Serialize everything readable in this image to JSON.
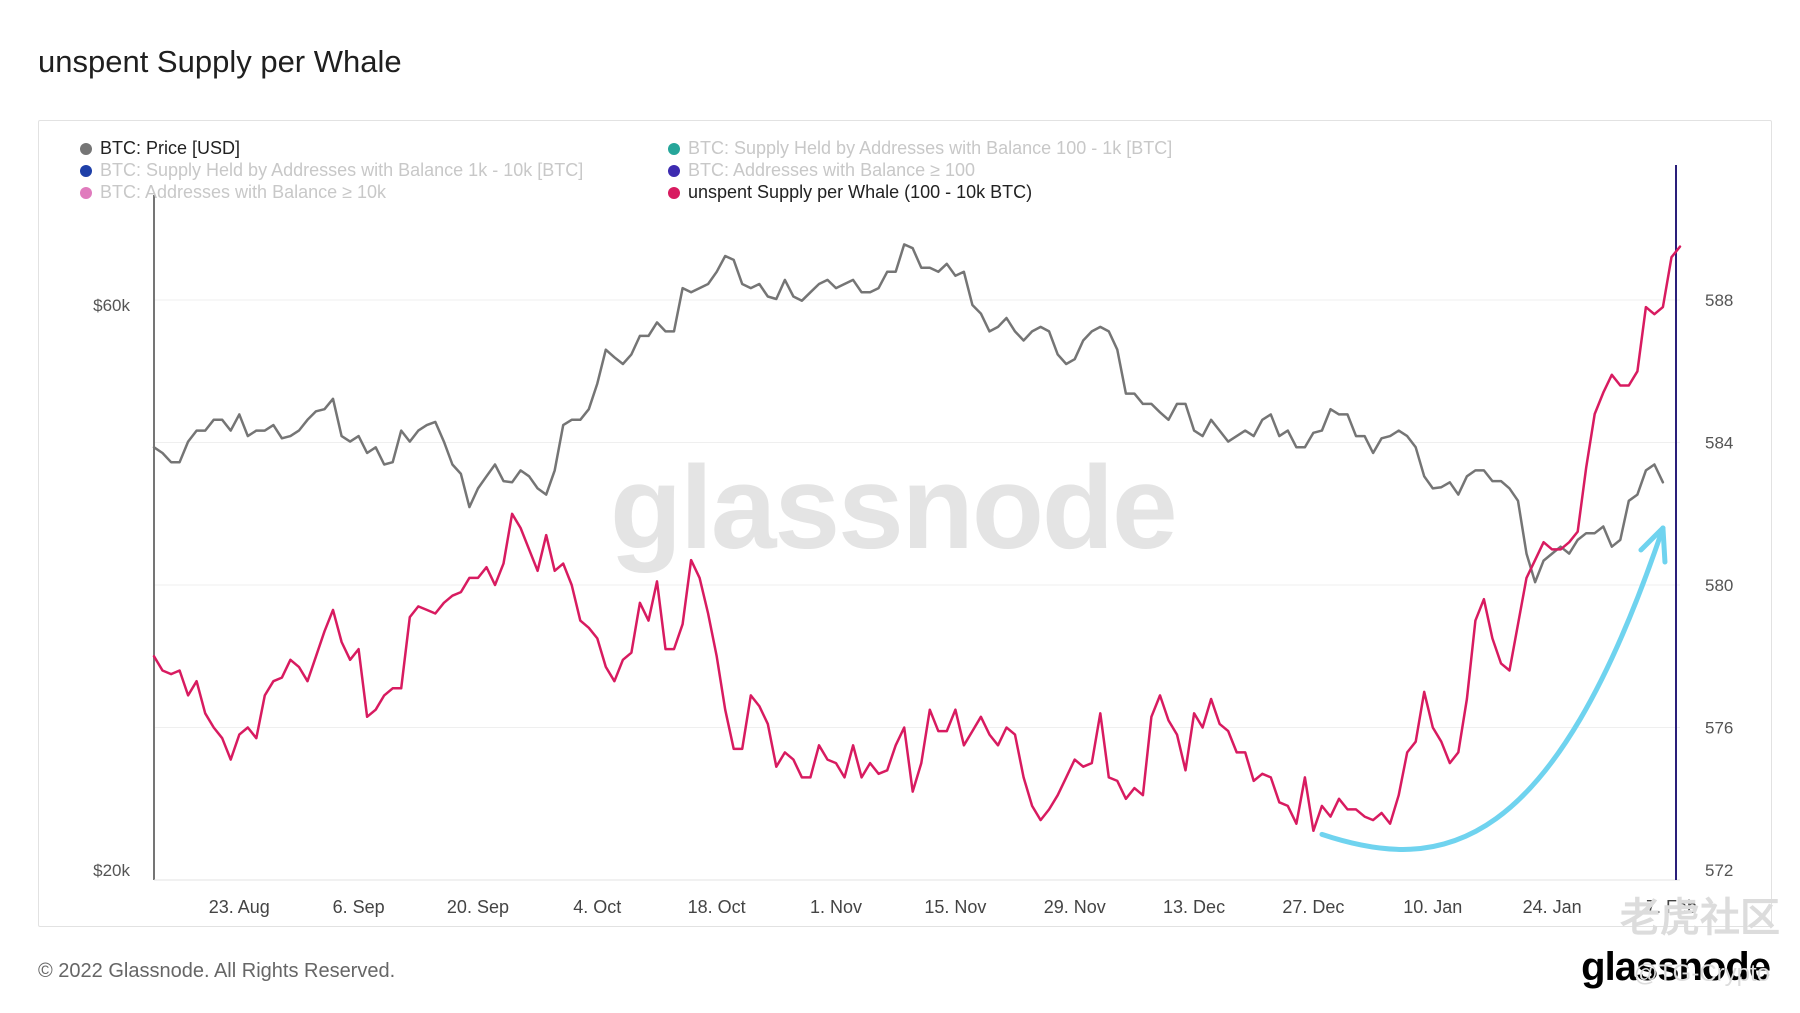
{
  "title": "unspent Supply per Whale",
  "legend": [
    {
      "label": "BTC: Price [USD]",
      "color": "#757575",
      "muted": false
    },
    {
      "label": "BTC: Supply Held by Addresses with Balance 100 - 1k [BTC]",
      "color": "#26a69a",
      "muted": true
    },
    {
      "label": "BTC: Supply Held by Addresses with Balance 1k - 10k [BTC]",
      "color": "#1e3fa8",
      "muted": true
    },
    {
      "label": "BTC: Addresses with Balance ≥ 100",
      "color": "#3d2bb0",
      "muted": true
    },
    {
      "label": "BTC: Addresses with Balance ≥ 10k",
      "color": "#e07bbd",
      "muted": true
    },
    {
      "label": "unspent Supply per Whale (100 - 10k BTC)",
      "color": "#d81b60",
      "muted": false
    }
  ],
  "watermark": "glassnode",
  "copyright": "© 2022 Glassnode. All Rights Reserved.",
  "brand": "glassnode",
  "overlay_watermark": "老虎社区",
  "overlay_handle": "@TG-Crypto",
  "colors": {
    "price": "#757575",
    "ratio": "#d81b60",
    "arrow": "#6fd3ef",
    "cursor": "#2a1f7a"
  },
  "chart_data": {
    "type": "line",
    "x_start": "2021-08-13",
    "x_end": "2022-02-08",
    "x_step_days": 1,
    "x_ticks": [
      "23. Aug",
      "6. Sep",
      "20. Sep",
      "4. Oct",
      "18. Oct",
      "1. Nov",
      "15. Nov",
      "29. Nov",
      "13. Dec",
      "27. Dec",
      "10. Jan",
      "24. Jan",
      "7. Feb"
    ],
    "y_left": {
      "ticks": [
        "$20k",
        "$60k"
      ],
      "scale": "log"
    },
    "y_right": {
      "range": [
        572,
        590
      ],
      "ticks": [
        "572",
        "576",
        "580",
        "584",
        "588"
      ]
    },
    "series": [
      {
        "name": "BTC: Price [USD]",
        "axis": "left",
        "color": "#757575",
        "values": [
          45500,
          45000,
          44200,
          44200,
          46000,
          47000,
          47000,
          48000,
          48000,
          47000,
          48500,
          46500,
          47000,
          47000,
          47500,
          46300,
          46500,
          47000,
          48000,
          48800,
          49000,
          50000,
          46500,
          46000,
          46500,
          45000,
          45500,
          44000,
          44200,
          47000,
          46000,
          47000,
          47500,
          47800,
          46000,
          44000,
          43200,
          40500,
          42000,
          43000,
          44000,
          42600,
          42500,
          43500,
          43000,
          42000,
          41500,
          43500,
          47500,
          48000,
          48000,
          49000,
          51500,
          55000,
          54200,
          53500,
          54500,
          56500,
          56500,
          58000,
          57000,
          57000,
          62000,
          61500,
          62000,
          62500,
          64000,
          66000,
          65500,
          62500,
          62000,
          62500,
          61000,
          60700,
          63000,
          61000,
          60500,
          61500,
          62500,
          63000,
          62000,
          62500,
          63000,
          61500,
          61500,
          62000,
          64000,
          64000,
          67500,
          67000,
          64500,
          64500,
          64000,
          65000,
          63500,
          64000,
          60000,
          59000,
          57000,
          57500,
          58500,
          57000,
          56000,
          57000,
          57500,
          57000,
          54500,
          53500,
          54000,
          56000,
          57000,
          57500,
          57000,
          55000,
          50500,
          50500,
          49500,
          49500,
          48700,
          48000,
          49500,
          49500,
          47000,
          46500,
          48000,
          47000,
          46000,
          46500,
          47000,
          46500,
          48000,
          48500,
          46500,
          47000,
          45500,
          45500,
          46800,
          47000,
          49000,
          48500,
          48500,
          46500,
          46500,
          45000,
          46300,
          46500,
          47000,
          46500,
          45500,
          43000,
          42000,
          42100,
          42500,
          41500,
          43000,
          43500,
          43500,
          42600,
          42600,
          42000,
          41000,
          37000,
          35000,
          36500,
          37000,
          37500,
          37000,
          38000,
          38500,
          38500,
          39000,
          37500,
          38000,
          41000,
          41500,
          43500,
          44000,
          42500
        ]
      },
      {
        "name": "unspent Supply per Whale (100 - 10k BTC)",
        "axis": "right",
        "color": "#d81b60",
        "values": [
          578.0,
          577.6,
          577.5,
          577.6,
          576.9,
          577.3,
          576.4,
          576.0,
          575.7,
          575.1,
          575.8,
          576.0,
          575.7,
          576.9,
          577.3,
          577.4,
          577.9,
          577.7,
          577.3,
          578.0,
          578.7,
          579.3,
          578.4,
          577.9,
          578.2,
          576.3,
          576.5,
          576.9,
          577.1,
          577.1,
          579.1,
          579.4,
          579.3,
          579.2,
          579.5,
          579.7,
          579.8,
          580.2,
          580.2,
          580.5,
          580.0,
          580.6,
          582.0,
          581.6,
          581.0,
          580.4,
          581.4,
          580.4,
          580.6,
          580.0,
          579.0,
          578.8,
          578.5,
          577.7,
          577.3,
          577.9,
          578.1,
          579.5,
          579.0,
          580.1,
          578.2,
          578.2,
          578.9,
          580.7,
          580.2,
          579.2,
          578.0,
          576.5,
          575.4,
          575.4,
          576.9,
          576.6,
          576.1,
          574.9,
          575.3,
          575.1,
          574.6,
          574.6,
          575.5,
          575.1,
          575.0,
          574.6,
          575.5,
          574.6,
          575.0,
          574.7,
          574.8,
          575.5,
          576.0,
          574.2,
          575.0,
          576.5,
          575.9,
          575.9,
          576.5,
          575.5,
          575.9,
          576.3,
          575.8,
          575.5,
          576.0,
          575.8,
          574.6,
          573.8,
          573.4,
          573.7,
          574.1,
          574.6,
          575.1,
          574.9,
          575.0,
          576.4,
          574.6,
          574.5,
          574.0,
          574.3,
          574.1,
          576.3,
          576.9,
          576.2,
          575.8,
          574.8,
          576.4,
          576.0,
          576.8,
          576.1,
          575.9,
          575.3,
          575.3,
          574.5,
          574.7,
          574.6,
          573.9,
          573.8,
          573.3,
          574.6,
          573.1,
          573.8,
          573.5,
          574.0,
          573.7,
          573.7,
          573.5,
          573.4,
          573.6,
          573.3,
          574.1,
          575.3,
          575.6,
          577.0,
          576.0,
          575.6,
          575.0,
          575.3,
          576.8,
          579.0,
          579.6,
          578.5,
          577.8,
          577.6,
          578.9,
          580.2,
          580.7,
          581.2,
          581.0,
          581.0,
          581.2,
          581.5,
          583.3,
          584.8,
          585.4,
          585.9,
          585.6,
          585.6,
          586.0,
          587.8,
          587.6,
          587.8,
          589.2,
          589.5
        ]
      }
    ],
    "annotation": {
      "type": "curved-arrow",
      "from_date": "2021-12-28",
      "to_date": "2022-02-06"
    }
  }
}
